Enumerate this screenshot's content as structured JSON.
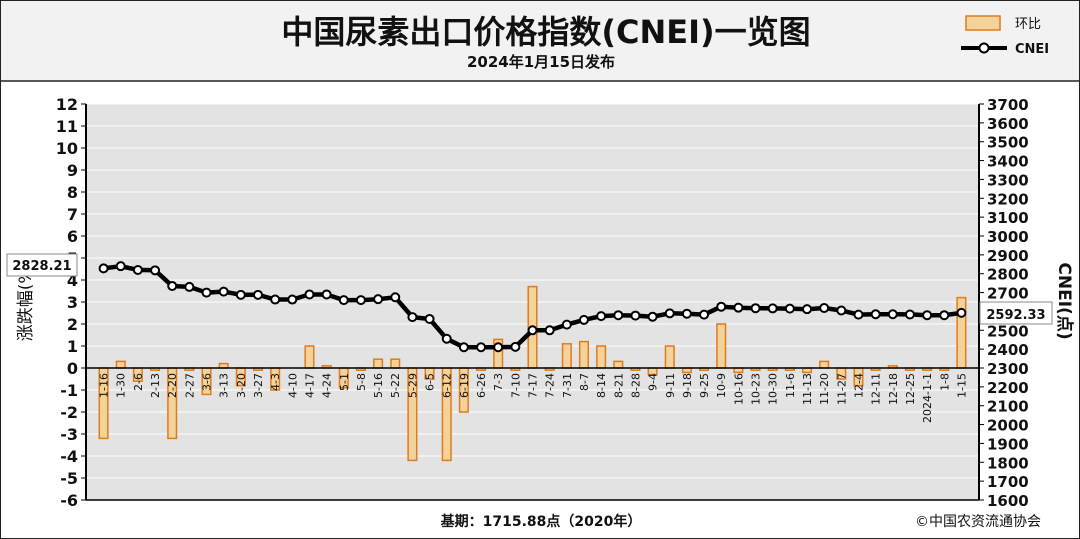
{
  "colors": {
    "header_bg": "#f2f2f2",
    "plot_bg": "#e3e3e3",
    "grid": "#ffffff",
    "bar_fill": "#f3d39a",
    "bar_edge": "#e07b1c",
    "line": "#000000",
    "marker_fill": "#ffffff"
  },
  "chart_data": {
    "type": "bar+line",
    "title": "中国尿素出口价格指数(CNEI)一览图",
    "subtitle": "2024年1月15日发布",
    "legend": {
      "placement": "top-right",
      "bar_label": "环比",
      "line_label": "CNEI"
    },
    "left_axis": {
      "label": "涨跌幅(%)",
      "ylim": [
        -6,
        12
      ],
      "ticks": [
        "12",
        "11",
        "10",
        "9",
        "8",
        "7",
        "6",
        "5",
        "4",
        "3",
        "2",
        "1",
        "0",
        "-1",
        "-2",
        "-3",
        "-4",
        "-5",
        "-6"
      ]
    },
    "right_axis": {
      "label": "CNEI(点)",
      "ylim": [
        1600,
        3700
      ],
      "ticks": [
        "3700",
        "3600",
        "3500",
        "3400",
        "3300",
        "3200",
        "3100",
        "3000",
        "2900",
        "2800",
        "2700",
        "2600",
        "2500",
        "2400",
        "2300",
        "2200",
        "2100",
        "2000",
        "1900",
        "1800",
        "1700",
        "1600"
      ]
    },
    "grid": true,
    "categories": [
      "1-16",
      "1-30",
      "2-6",
      "2-13",
      "2-20",
      "2-27",
      "3-6",
      "3-13",
      "3-20",
      "3-27",
      "4-3",
      "4-10",
      "4-17",
      "4-24",
      "5-1",
      "5-8",
      "5-16",
      "5-22",
      "5-29",
      "6-5",
      "6-12",
      "6-19",
      "6-26",
      "7-3",
      "7-10",
      "7-17",
      "7-24",
      "7-31",
      "8-7",
      "8-14",
      "8-21",
      "8-28",
      "9-4",
      "9-11",
      "9-18",
      "9-25",
      "10-9",
      "10-16",
      "10-23",
      "10-30",
      "11-6",
      "11-13",
      "11-20",
      "11-27",
      "12-4",
      "12-11",
      "12-18",
      "12-25",
      "2024-1-1",
      "1-8",
      "1-15"
    ],
    "series": [
      {
        "name": "环比",
        "type": "bar",
        "axis": "left",
        "values": [
          -3.2,
          0.3,
          -0.6,
          -0.1,
          -3.2,
          -0.1,
          -1.2,
          0.2,
          -0.8,
          -0.1,
          -1.0,
          0.0,
          1.0,
          0.1,
          -0.9,
          -0.1,
          0.4,
          0.4,
          -4.2,
          -0.5,
          -4.2,
          -2.0,
          -0.1,
          1.3,
          -0.1,
          3.7,
          -0.1,
          1.1,
          1.2,
          1.0,
          0.3,
          -0.1,
          -0.3,
          1.0,
          -0.2,
          -0.1,
          2.0,
          -0.2,
          -0.1,
          -0.1,
          -0.1,
          -0.2,
          0.3,
          -0.5,
          -0.8,
          -0.1,
          0.1,
          -0.1,
          -0.1,
          -0.1,
          3.2
        ]
      },
      {
        "name": "CNEI",
        "type": "line",
        "axis": "right",
        "values": [
          2828.21,
          2840,
          2820,
          2818,
          2735,
          2730,
          2700,
          2705,
          2688,
          2688,
          2663,
          2663,
          2690,
          2690,
          2660,
          2660,
          2665,
          2675,
          2570,
          2560,
          2455,
          2410,
          2410,
          2410,
          2412,
          2500,
          2500,
          2530,
          2555,
          2575,
          2580,
          2578,
          2572,
          2590,
          2588,
          2583,
          2625,
          2620,
          2617,
          2616,
          2615,
          2612,
          2618,
          2605,
          2583,
          2585,
          2585,
          2584,
          2580,
          2580,
          2592.33
        ]
      }
    ],
    "annotations": {
      "first_value": "2828.21",
      "last_value": "2592.33"
    },
    "footer": {
      "base_note": "基期：1715.88点（2020年）",
      "copyright": "©中国农资流通协会"
    }
  }
}
